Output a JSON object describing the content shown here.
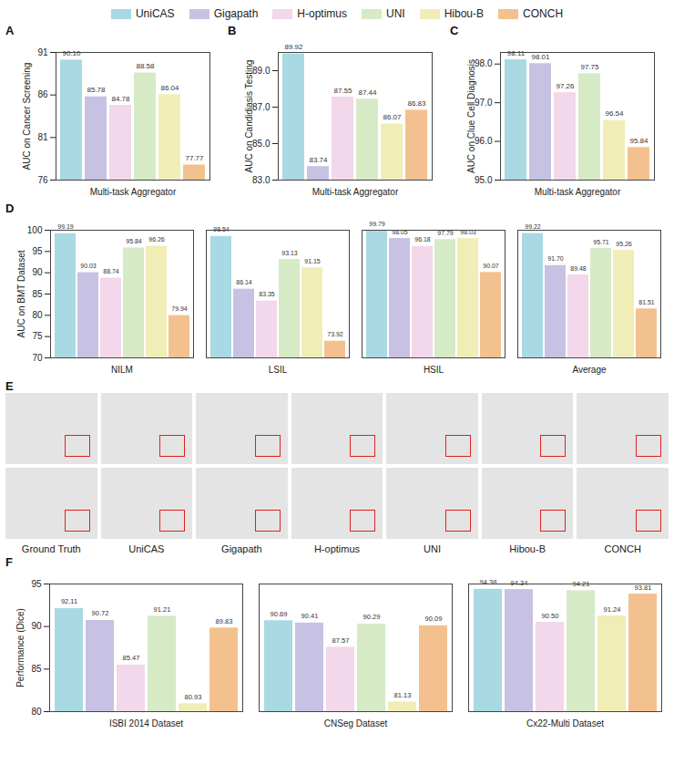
{
  "chart_data": [
    {
      "type": "bar",
      "label": "A",
      "legend": "top",
      "y_label": "AUC on Cancer Screening",
      "grid": false,
      "data_labels": true,
      "categories": [
        "Multi-task Aggregator"
      ],
      "ylim": [
        76,
        91
      ],
      "yticks": [
        76,
        81,
        86,
        91
      ],
      "series": [
        {
          "name": "UniCAS",
          "color": "#a9d9e3",
          "values": [
            90.1
          ],
          "value_labels": [
            "90.10"
          ]
        },
        {
          "name": "Gigapath",
          "color": "#c7c1e3",
          "values": [
            85.78
          ],
          "value_labels": [
            "85.78"
          ]
        },
        {
          "name": "H-optimus",
          "color": "#f3d7ea",
          "values": [
            84.78
          ],
          "value_labels": [
            "84.78"
          ]
        },
        {
          "name": "UNI",
          "color": "#d6eac6",
          "values": [
            88.58
          ],
          "value_labels": [
            "88.58"
          ]
        },
        {
          "name": "Hibou-B",
          "color": "#f1edb7",
          "values": [
            86.04
          ],
          "value_labels": [
            "86.04"
          ]
        },
        {
          "name": "CONCH",
          "color": "#f3c18f",
          "values": [
            77.77
          ],
          "value_labels": [
            "77.77"
          ]
        }
      ]
    },
    {
      "type": "bar",
      "label": "B",
      "y_label": "AUC on Candidiasis Testing",
      "grid": false,
      "data_labels": true,
      "categories": [
        "Multi-task Aggregator"
      ],
      "ylim": [
        83,
        90
      ],
      "yticks": [
        83,
        85,
        87,
        89
      ],
      "series": [
        {
          "name": "UniCAS",
          "color": "#a9d9e3",
          "values": [
            89.92
          ],
          "value_labels": [
            "89.92"
          ]
        },
        {
          "name": "Gigapath",
          "color": "#c7c1e3",
          "values": [
            83.74
          ],
          "value_labels": [
            "83.74"
          ]
        },
        {
          "name": "H-optimus",
          "color": "#f3d7ea",
          "values": [
            87.55
          ],
          "value_labels": [
            "87.55"
          ]
        },
        {
          "name": "UNI",
          "color": "#d6eac6",
          "values": [
            87.44
          ],
          "value_labels": [
            "87.44"
          ]
        },
        {
          "name": "Hibou-B",
          "color": "#f1edb7",
          "values": [
            86.07
          ],
          "value_labels": [
            "86.07"
          ]
        },
        {
          "name": "CONCH",
          "color": "#f3c18f",
          "values": [
            86.83
          ],
          "value_labels": [
            "86.83"
          ]
        }
      ]
    },
    {
      "type": "bar",
      "label": "C",
      "y_label": "AUC on Clue Cell Diagnosis",
      "grid": false,
      "data_labels": true,
      "categories": [
        "Multi-task Aggregator"
      ],
      "ylim": [
        95,
        98.3
      ],
      "yticks": [
        95,
        96,
        97,
        98
      ],
      "series": [
        {
          "name": "UniCAS",
          "color": "#a9d9e3",
          "values": [
            98.11
          ],
          "value_labels": [
            "98.11"
          ]
        },
        {
          "name": "Gigapath",
          "color": "#c7c1e3",
          "values": [
            98.01
          ],
          "value_labels": [
            "98.01"
          ]
        },
        {
          "name": "H-optimus",
          "color": "#f3d7ea",
          "values": [
            97.26
          ],
          "value_labels": [
            "97.26"
          ]
        },
        {
          "name": "UNI",
          "color": "#d6eac6",
          "values": [
            97.75
          ],
          "value_labels": [
            "97.75"
          ]
        },
        {
          "name": "Hibou-B",
          "color": "#f1edb7",
          "values": [
            96.54
          ],
          "value_labels": [
            "96.54"
          ]
        },
        {
          "name": "CONCH",
          "color": "#f3c18f",
          "values": [
            95.84
          ],
          "value_labels": [
            "95.84"
          ]
        }
      ]
    },
    {
      "type": "bar",
      "label": "D",
      "y_label": "AUC on BMT Dataset",
      "grid": false,
      "data_labels": true,
      "categories": [
        "NILM",
        "LSIL",
        "HSIL",
        "Average"
      ],
      "ylim": [
        70,
        100
      ],
      "yticks": [
        70,
        75,
        80,
        85,
        90,
        95,
        100
      ],
      "series": [
        {
          "name": "UniCAS",
          "color": "#a9d9e3",
          "values": [
            99.19,
            98.54,
            99.79,
            99.22
          ],
          "value_labels": [
            "99.19",
            "98.54",
            "99.79",
            "99.22"
          ]
        },
        {
          "name": "Gigapath",
          "color": "#c7c1e3",
          "values": [
            90.03,
            86.14,
            98.05,
            91.7
          ],
          "value_labels": [
            "90.03",
            "86.14",
            "98.05",
            "91.70"
          ]
        },
        {
          "name": "H-optimus",
          "color": "#f3d7ea",
          "values": [
            88.74,
            83.35,
            96.18,
            89.48
          ],
          "value_labels": [
            "88.74",
            "83.35",
            "96.18",
            "89.48"
          ]
        },
        {
          "name": "UNI",
          "color": "#d6eac6",
          "values": [
            95.84,
            93.13,
            97.79,
            95.71
          ],
          "value_labels": [
            "95.84",
            "93.13",
            "97.79",
            "95.71"
          ]
        },
        {
          "name": "Hibou-B",
          "color": "#f1edb7",
          "values": [
            96.26,
            91.15,
            98.03,
            95.26
          ],
          "value_labels": [
            "96.26",
            "91.15",
            "98.03",
            "95.26"
          ]
        },
        {
          "name": "CONCH",
          "color": "#f3c18f",
          "values": [
            79.94,
            73.92,
            90.07,
            81.51
          ],
          "value_labels": [
            "79.94",
            "73.92",
            "90.07",
            "81.51"
          ]
        }
      ]
    },
    {
      "type": "bar",
      "label": "F",
      "y_label": "Performance (Dice)",
      "grid": false,
      "data_labels": true,
      "categories": [
        "ISBI 2014 Dataset",
        "CNSeg Dataset",
        "Cx22-Multi Dataset"
      ],
      "ylim": [
        80,
        95
      ],
      "yticks": [
        80,
        85,
        90,
        95
      ],
      "series": [
        {
          "name": "UniCAS",
          "color": "#a9d9e3",
          "values": [
            92.11,
            90.69,
            94.38
          ],
          "value_labels": [
            "92.11",
            "90.69",
            "94.38"
          ]
        },
        {
          "name": "Gigapath",
          "color": "#c7c1e3",
          "values": [
            90.72,
            90.41,
            94.34
          ],
          "value_labels": [
            "90.72",
            "90.41",
            "94.34"
          ]
        },
        {
          "name": "H-optimus",
          "color": "#f3d7ea",
          "values": [
            85.47,
            87.57,
            90.5
          ],
          "value_labels": [
            "85.47",
            "87.57",
            "90.50"
          ]
        },
        {
          "name": "UNI",
          "color": "#d6eac6",
          "values": [
            91.21,
            90.29,
            94.21
          ],
          "value_labels": [
            "91.21",
            "90.29",
            "94.21"
          ]
        },
        {
          "name": "Hibou-B",
          "color": "#f1edb7",
          "values": [
            80.93,
            81.13,
            91.24
          ],
          "value_labels": [
            "80.93",
            "81.13",
            "91.24"
          ]
        },
        {
          "name": "CONCH",
          "color": "#f3c18f",
          "values": [
            89.83,
            90.09,
            93.81
          ],
          "value_labels": [
            "89.83",
            "90.09",
            "93.81"
          ]
        }
      ]
    }
  ],
  "image_panel": {
    "label": "E",
    "columns": [
      "Ground Truth",
      "UniCAS",
      "Gigapath",
      "H-optimus",
      "UNI",
      "Hibou-B",
      "CONCH"
    ]
  }
}
